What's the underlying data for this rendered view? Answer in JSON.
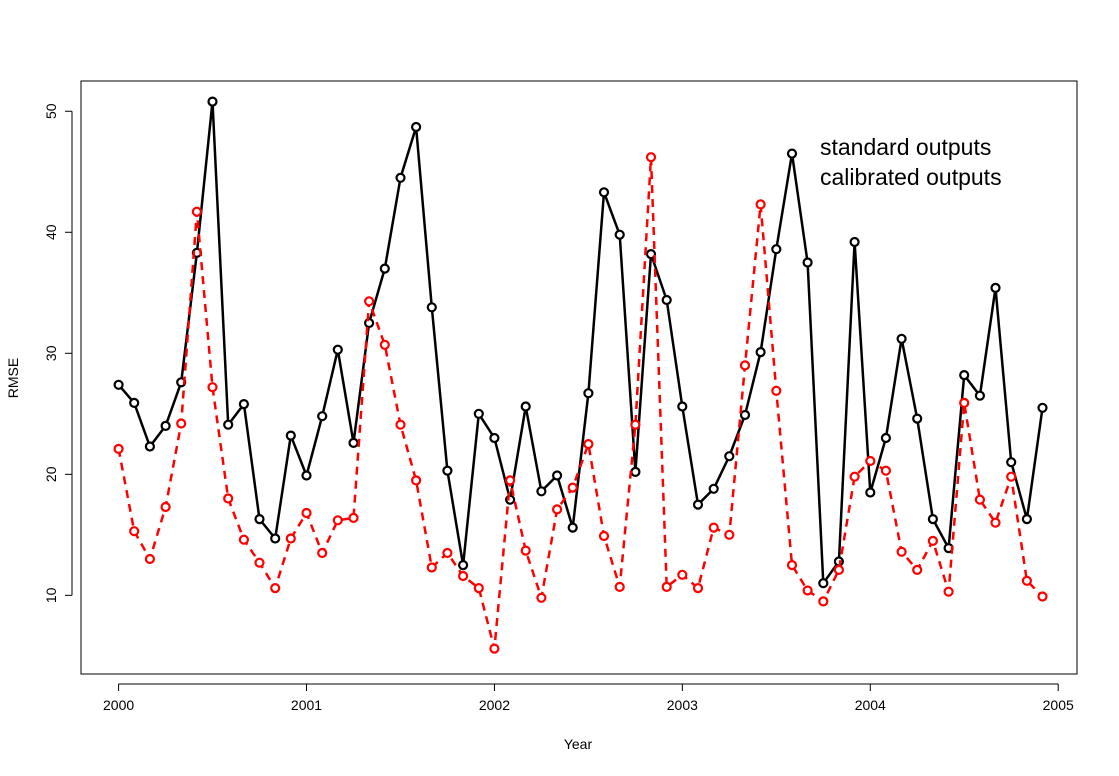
{
  "chart_data": {
    "type": "line",
    "title": "",
    "xlabel": "Year",
    "ylabel": "RMSE",
    "xlim": [
      1999.8,
      2005.1
    ],
    "ylim": [
      3.5,
      52.5
    ],
    "x_ticks": [
      2000,
      2001,
      2002,
      2003,
      2004,
      2005
    ],
    "x_tick_labels": [
      "2000",
      "2001",
      "2002",
      "2003",
      "2004",
      "2005"
    ],
    "y_ticks": [
      10,
      20,
      30,
      40,
      50
    ],
    "y_tick_labels": [
      "10",
      "20",
      "30",
      "40",
      "50"
    ],
    "grid": false,
    "legend_position": "top-right",
    "x_start": 2000,
    "x_step": 0.08333,
    "series": [
      {
        "name": "standard outputs",
        "color": "#000000",
        "line_style": "solid",
        "values": [
          27.4,
          25.9,
          22.3,
          24.0,
          27.6,
          38.3,
          50.8,
          24.1,
          25.8,
          16.3,
          14.7,
          23.2,
          19.9,
          24.8,
          30.3,
          22.6,
          32.5,
          37.0,
          44.5,
          48.7,
          33.8,
          20.3,
          12.5,
          25.0,
          23.0,
          17.9,
          25.6,
          18.6,
          19.9,
          15.6,
          26.7,
          43.3,
          39.8,
          20.2,
          38.2,
          34.4,
          25.6,
          17.5,
          18.8,
          21.5,
          24.9,
          30.1,
          38.6,
          46.5,
          37.5,
          11.0,
          12.8,
          39.2,
          18.5,
          23.0,
          31.2,
          24.6,
          16.3,
          13.9,
          28.2,
          26.5,
          35.4,
          21.0,
          16.3,
          25.5
        ]
      },
      {
        "name": "calibrated outputs",
        "color": "#ff0000",
        "line_style": "dashed",
        "values": [
          22.1,
          15.3,
          13.0,
          17.3,
          24.2,
          41.7,
          27.2,
          18.0,
          14.6,
          12.7,
          10.6,
          14.7,
          16.8,
          13.5,
          16.2,
          16.4,
          34.3,
          30.7,
          24.1,
          19.5,
          12.3,
          13.5,
          11.6,
          10.6,
          5.6,
          19.5,
          13.7,
          9.8,
          17.1,
          18.9,
          22.5,
          14.9,
          10.7,
          24.1,
          46.2,
          10.7,
          11.7,
          10.6,
          15.6,
          15.0,
          29.0,
          42.3,
          26.9,
          12.5,
          10.4,
          9.5,
          12.1,
          19.8,
          21.1,
          20.3,
          13.6,
          12.1,
          14.5,
          10.3,
          25.9,
          17.9,
          16.0,
          19.8,
          11.2,
          9.9
        ]
      }
    ]
  }
}
